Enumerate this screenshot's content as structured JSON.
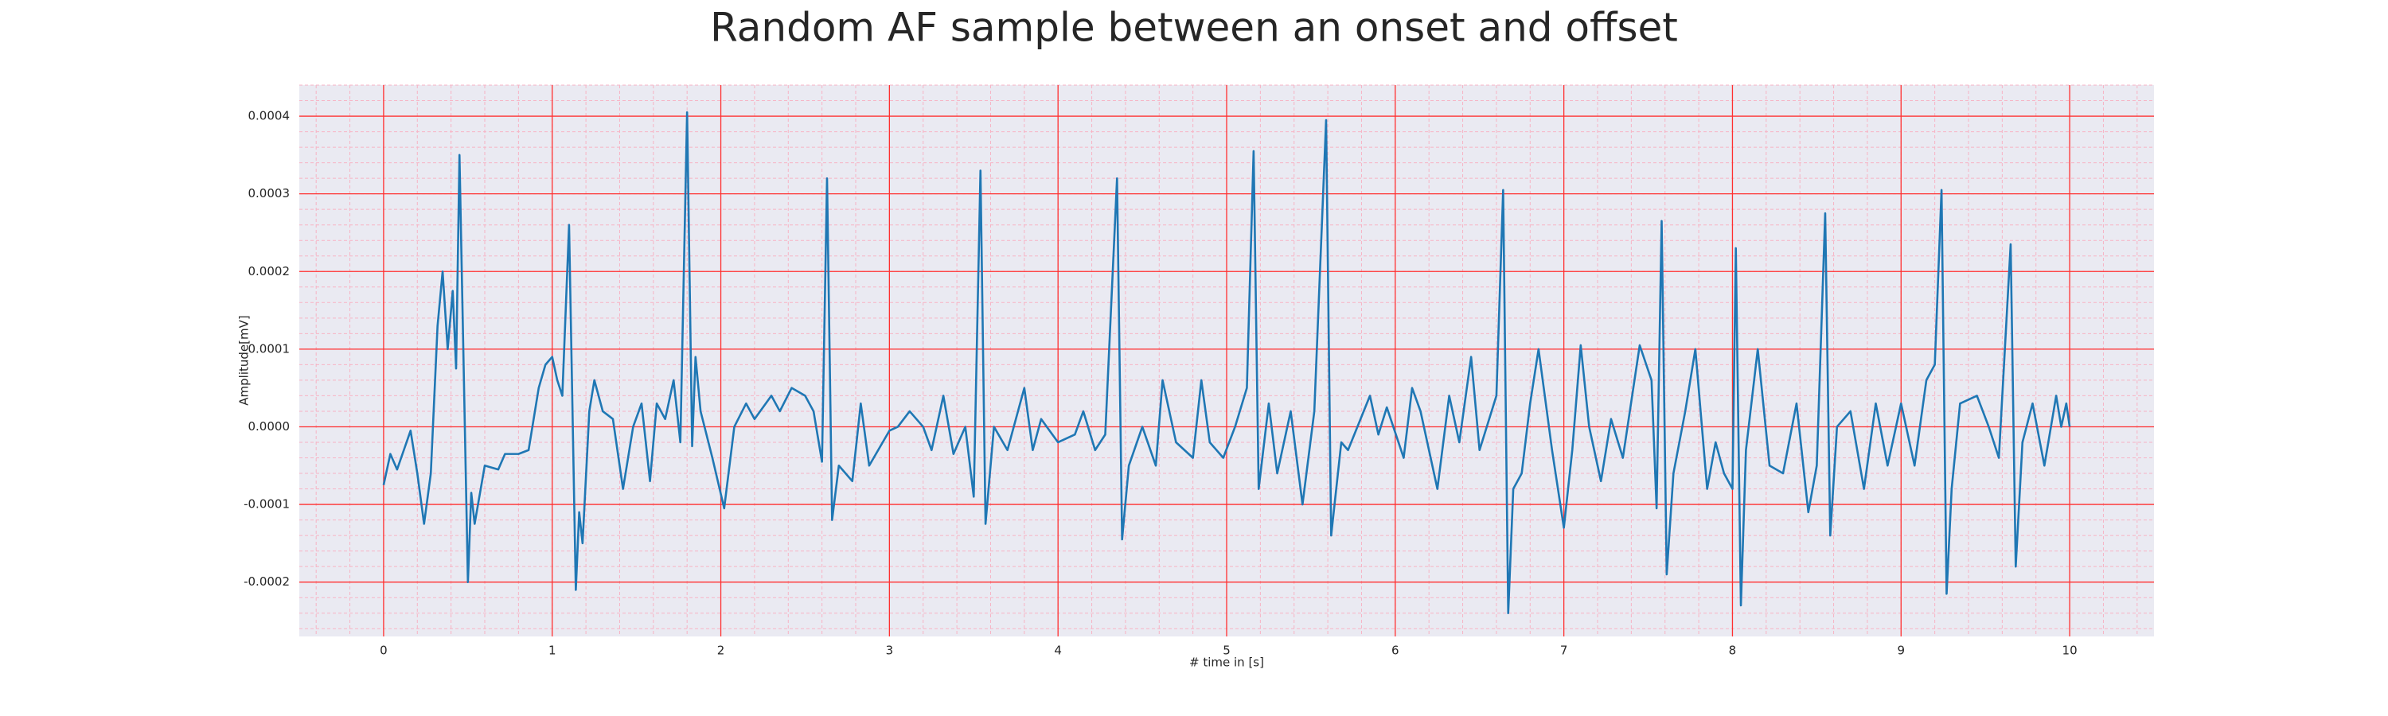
{
  "chart_data": {
    "type": "line",
    "title": "Random AF sample between an onset and offset",
    "xlabel": "# time in [s]",
    "ylabel": "Amplitude[mV]",
    "xlim": [
      -0.5,
      10.5
    ],
    "xticks": [
      0,
      1,
      2,
      3,
      4,
      5,
      6,
      7,
      8,
      9,
      10
    ],
    "ylim": [
      -0.00027,
      0.00044
    ],
    "yticks": [
      -0.0002,
      -0.0001,
      {
        "value": 0,
        "label": "0.0000"
      },
      0.0001,
      0.0002,
      0.0003,
      0.0004
    ],
    "grid": true,
    "grid_color": "#ff3030",
    "minor_grid": true,
    "minor_grid_color": "#f7b3c4",
    "minor_divisions": 5,
    "background": "#eaeaf2",
    "series": [
      {
        "color": "#1f77b4",
        "x": [
          0.0,
          0.04,
          0.08,
          0.12,
          0.16,
          0.2,
          0.24,
          0.28,
          0.32,
          0.35,
          0.38,
          0.41,
          0.43,
          0.45,
          0.5,
          0.52,
          0.54,
          0.6,
          0.68,
          0.72,
          0.8,
          0.86,
          0.92,
          0.96,
          1.0,
          1.03,
          1.06,
          1.1,
          1.14,
          1.16,
          1.18,
          1.22,
          1.25,
          1.3,
          1.36,
          1.42,
          1.48,
          1.53,
          1.58,
          1.62,
          1.67,
          1.72,
          1.76,
          1.8,
          1.83,
          1.85,
          1.88,
          1.95,
          2.02,
          2.08,
          2.15,
          2.2,
          2.3,
          2.35,
          2.42,
          2.5,
          2.55,
          2.6,
          2.63,
          2.66,
          2.7,
          2.78,
          2.83,
          2.88,
          3.0,
          3.05,
          3.12,
          3.2,
          3.25,
          3.32,
          3.38,
          3.45,
          3.5,
          3.54,
          3.57,
          3.62,
          3.7,
          3.8,
          3.85,
          3.9,
          4.0,
          4.1,
          4.15,
          4.22,
          4.28,
          4.35,
          4.38,
          4.42,
          4.5,
          4.58,
          4.62,
          4.7,
          4.8,
          4.85,
          4.9,
          4.98,
          5.05,
          5.12,
          5.16,
          5.19,
          5.25,
          5.3,
          5.38,
          5.45,
          5.52,
          5.59,
          5.62,
          5.68,
          5.72,
          5.85,
          5.9,
          5.95,
          6.05,
          6.1,
          6.15,
          6.25,
          6.32,
          6.38,
          6.45,
          6.5,
          6.6,
          6.64,
          6.67,
          6.7,
          6.75,
          6.8,
          6.85,
          6.93,
          7.0,
          7.05,
          7.1,
          7.15,
          7.22,
          7.28,
          7.35,
          7.45,
          7.52,
          7.55,
          7.58,
          7.61,
          7.65,
          7.72,
          7.78,
          7.85,
          7.9,
          7.95,
          8.0,
          8.02,
          8.05,
          8.08,
          8.15,
          8.22,
          8.3,
          8.38,
          8.45,
          8.5,
          8.55,
          8.58,
          8.62,
          8.7,
          8.78,
          8.85,
          8.92,
          9.0,
          9.08,
          9.15,
          9.2,
          9.24,
          9.27,
          9.3,
          9.35,
          9.45,
          9.52,
          9.58,
          9.65,
          9.68,
          9.72,
          9.78,
          9.85,
          9.92,
          9.95,
          9.98,
          10.0
        ],
        "values": [
          -7.5e-05,
          -3.5e-05,
          -5.5e-05,
          -3e-05,
          -5e-06,
          -6e-05,
          -0.000125,
          -6e-05,
          0.00013,
          0.0002,
          0.0001,
          0.000175,
          7.5e-05,
          0.00035,
          -0.0002,
          -8.5e-05,
          -0.000125,
          -5e-05,
          -5.5e-05,
          -3.5e-05,
          -3.5e-05,
          -3e-05,
          5e-05,
          8e-05,
          9e-05,
          6e-05,
          4e-05,
          0.00026,
          -0.00021,
          -0.00011,
          -0.00015,
          2e-05,
          6e-05,
          2e-05,
          1e-05,
          -8e-05,
          0.0,
          3e-05,
          -7e-05,
          3e-05,
          1e-05,
          6e-05,
          -2e-05,
          0.000405,
          -2.5e-05,
          9e-05,
          2e-05,
          -4e-05,
          -0.000105,
          0.0,
          3e-05,
          1e-05,
          4e-05,
          2e-05,
          5e-05,
          4e-05,
          2e-05,
          -4.5e-05,
          0.00032,
          -0.00012,
          -5e-05,
          -7e-05,
          3e-05,
          -5e-05,
          -5e-06,
          0.0,
          2e-05,
          0.0,
          -3e-05,
          4e-05,
          -3.5e-05,
          0.0,
          -9e-05,
          0.00033,
          -0.000125,
          0.0,
          -3e-05,
          5e-05,
          -3e-05,
          1e-05,
          -2e-05,
          -1e-05,
          2e-05,
          -3e-05,
          -1e-05,
          0.00032,
          -0.000145,
          -5e-05,
          0.0,
          -5e-05,
          6e-05,
          -2e-05,
          -4e-05,
          6e-05,
          -2e-05,
          -4e-05,
          0.0,
          5e-05,
          0.000355,
          -8e-05,
          3e-05,
          -6e-05,
          2e-05,
          -0.0001,
          2e-05,
          0.000395,
          -0.00014,
          -2e-05,
          -3e-05,
          4e-05,
          -1e-05,
          2.5e-05,
          -4e-05,
          5e-05,
          2e-05,
          -8e-05,
          4e-05,
          -2e-05,
          9e-05,
          -3e-05,
          4e-05,
          0.000305,
          -0.00024,
          -8e-05,
          -6e-05,
          3e-05,
          0.0001,
          -3e-05,
          -0.00013,
          -3e-05,
          0.000105,
          0.0,
          -7e-05,
          1e-05,
          -4e-05,
          0.000105,
          6e-05,
          -0.000105,
          0.000265,
          -0.00019,
          -6e-05,
          2e-05,
          0.0001,
          -8e-05,
          -2e-05,
          -6e-05,
          -8e-05,
          0.00023,
          -0.00023,
          -3e-05,
          0.0001,
          -5e-05,
          -6e-05,
          3e-05,
          -0.00011,
          -5e-05,
          0.000275,
          -0.00014,
          0.0,
          2e-05,
          -8e-05,
          3e-05,
          -5e-05,
          3e-05,
          -5e-05,
          6e-05,
          8e-05,
          0.000305,
          -0.000215,
          -8e-05,
          3e-05,
          4e-05,
          0.0,
          -4e-05,
          0.000235,
          -0.00018,
          -2e-05,
          3e-05,
          -5e-05,
          4e-05,
          0.0,
          3e-05,
          0.0
        ]
      }
    ]
  }
}
